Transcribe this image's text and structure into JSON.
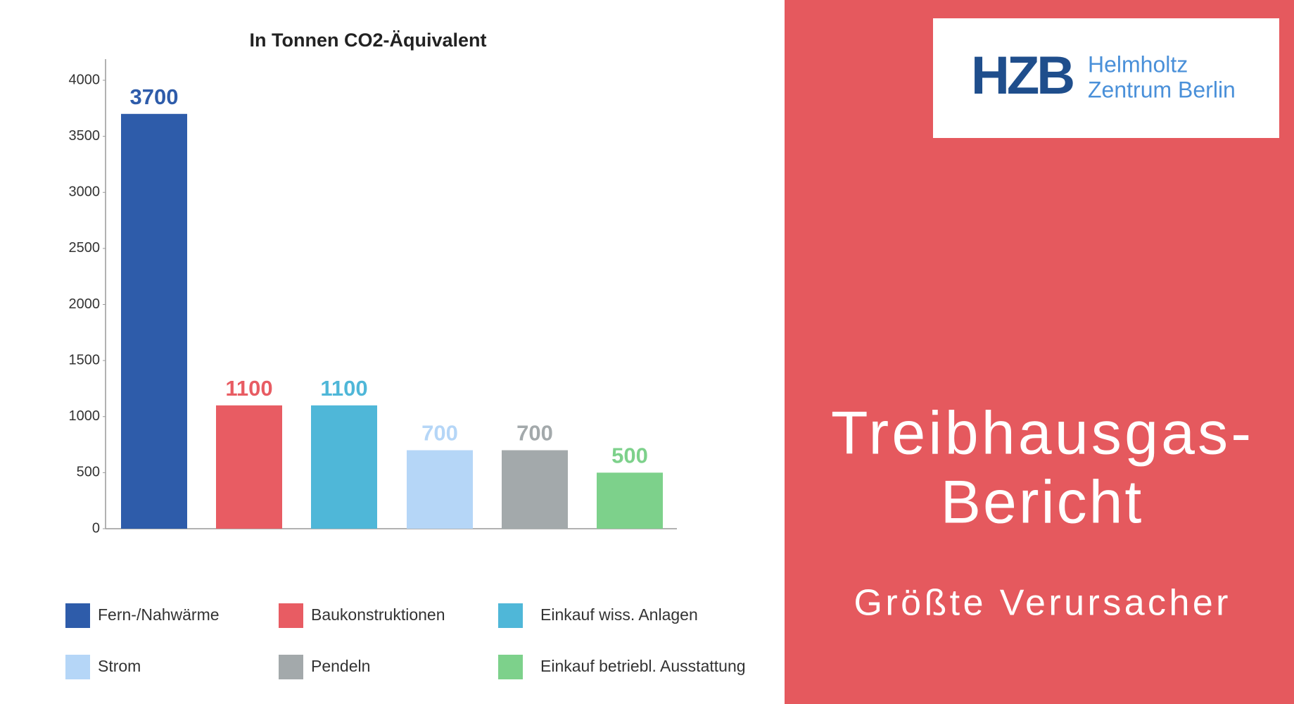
{
  "chart_data": {
    "type": "bar",
    "title": "In Tonnen CO2-Äquivalent",
    "categories": [
      "Fern-/Nahwärme",
      "Baukonstruktionen",
      "Einkauf wiss. Anlagen",
      "Strom",
      "Pendeln",
      "Einkauf betriebl. Ausstattung"
    ],
    "values": [
      3700,
      1100,
      1100,
      700,
      700,
      500
    ],
    "colors": [
      "#2e5caa",
      "#e85c63",
      "#4fb7d8",
      "#b5d6f7",
      "#a3a9ab",
      "#7dd18b"
    ],
    "ylim": [
      0,
      4000
    ],
    "yticks": [
      0,
      500,
      1000,
      1500,
      2000,
      2500,
      3000,
      3500,
      4000
    ],
    "grid": false
  },
  "panel": {
    "logo": "HZB",
    "logo_lines": [
      "Helmholtz",
      "Zentrum Berlin"
    ],
    "title_lines": [
      "Treibhausgas-",
      "Bericht"
    ],
    "subtitle": "Größte Verursacher"
  }
}
